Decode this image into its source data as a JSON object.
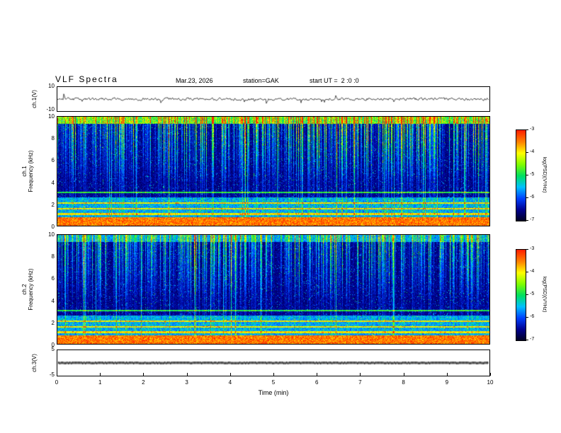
{
  "header": {
    "title": "VLF Spectra",
    "date": "Mar.23, 2026",
    "station": "station=GAK",
    "start_ut": "start UT =  2 :0 :0"
  },
  "panels": {
    "ch1_wave": {
      "ylabel": "ch.1(V)",
      "yticks": [
        "10",
        "-10"
      ]
    },
    "spec1": {
      "channel": "ch.1",
      "ylabel": "Frequency (kHz)",
      "yticks": [
        "10",
        "8",
        "6",
        "4",
        "2",
        "0"
      ]
    },
    "spec2": {
      "channel": "ch.2",
      "ylabel": "Frequency (kHz)",
      "yticks": [
        "10",
        "8",
        "6",
        "4",
        "2",
        "0"
      ]
    },
    "ch3": {
      "ylabel": "ch.3(V)",
      "yticks": [
        "5",
        "-5"
      ]
    }
  },
  "xaxis": {
    "label": "Time (min)",
    "ticks": [
      "0",
      "1",
      "2",
      "3",
      "4",
      "5",
      "6",
      "7",
      "8",
      "9",
      "10"
    ]
  },
  "colorbar": {
    "label": "log(PSD)(V²/Hz)",
    "ticks": [
      "-3",
      "-4",
      "-5",
      "-6",
      "-7"
    ],
    "colormap": [
      "#000020",
      "#000090",
      "#0040ff",
      "#00c0ff",
      "#00e060",
      "#80ff00",
      "#ffff00",
      "#ff8000",
      "#ff2000"
    ]
  },
  "chart_data": [
    {
      "id": "ch1_waveform",
      "type": "line",
      "ylabel": "ch.1(V)",
      "xlabel": "Time (min)",
      "xlim": [
        0,
        10
      ],
      "ylim": [
        -10,
        10
      ],
      "description": "Continuous noisy VLF amplitude trace centered on 0 V, typical excursions about plus/minus 2 V with sporadic impulsive spikes reaching about plus/minus 7 V"
    },
    {
      "id": "ch1_spectrogram",
      "type": "heatmap",
      "ylabel": "Frequency (kHz)",
      "xlabel": "Time (min)",
      "xlim": [
        0,
        10
      ],
      "ylim": [
        0,
        10
      ],
      "zlabel": "log(PSD)(V²/Hz)",
      "zlim": [
        -7,
        -3
      ],
      "features": {
        "background_psd": -7,
        "intense_band_khz": [
          0,
          0.8
        ],
        "intense_band_psd": -3.5,
        "diffuse_band_khz": [
          0.8,
          2.6
        ],
        "diffuse_band_psd": -6,
        "horizontal_lines_khz": [
          1.1,
          1.6,
          2.1,
          3.1
        ],
        "vertical_streaks": "dense broadband sferic impulses, strongest 5-10 kHz, reaching -4 to -3",
        "streak_strength": 1.0,
        "top_cap_strength": 1.0
      }
    },
    {
      "id": "ch2_spectrogram",
      "type": "heatmap",
      "ylabel": "Frequency (kHz)",
      "xlabel": "Time (min)",
      "xlim": [
        0,
        10
      ],
      "ylim": [
        0,
        10
      ],
      "zlabel": "log(PSD)(V²/Hz)",
      "zlim": [
        -7,
        -3
      ],
      "features": {
        "background_psd": -7,
        "intense_band_khz": [
          0,
          0.8
        ],
        "intense_band_psd": -3.5,
        "diffuse_band_khz": [
          0.8,
          2.6
        ],
        "diffuse_band_psd": -6,
        "horizontal_lines_khz": [
          1.1,
          1.6,
          2.1,
          3.1
        ],
        "vertical_streaks": "broadband sferic impulses, slightly weaker than ch.1",
        "streak_strength": 0.8,
        "top_cap_strength": 0.5
      }
    },
    {
      "id": "ch3_trace",
      "type": "line",
      "ylabel": "ch.3(V)",
      "xlabel": "Time (min)",
      "xlim": [
        0,
        10
      ],
      "ylim": [
        -5,
        5
      ],
      "description": "Flat heavy dotted trace constant at 0 V"
    }
  ]
}
